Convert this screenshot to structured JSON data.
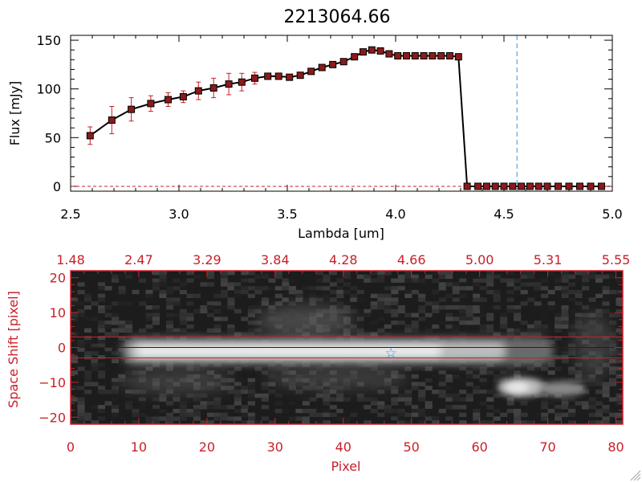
{
  "chart_data": [
    {
      "type": "line",
      "title": "2213064.66",
      "xlabel": "Lambda [um]",
      "ylabel": "Flux [mJy]",
      "xlim": [
        2.5,
        5.0
      ],
      "ylim": [
        -5,
        155
      ],
      "x_ticks": [
        "2.5",
        "3.0",
        "3.5",
        "4.0",
        "4.5",
        "5.0"
      ],
      "x_tick_values": [
        2.5,
        3.0,
        3.5,
        4.0,
        4.5,
        5.0
      ],
      "y_ticks": [
        "0",
        "50",
        "100",
        "150"
      ],
      "y_tick_values": [
        0,
        50,
        100,
        150
      ],
      "marker_line_x": 4.56,
      "marker_line_color": "#3b8fd6",
      "zero_line_color": "#c8202a",
      "series": [
        {
          "name": "flux",
          "line_color": "#000000",
          "marker_color": "#8b1a1a",
          "error_color": "#c8202a",
          "x": [
            2.59,
            2.69,
            2.78,
            2.87,
            2.95,
            3.02,
            3.09,
            3.16,
            3.23,
            3.29,
            3.35,
            3.41,
            3.46,
            3.51,
            3.56,
            3.61,
            3.66,
            3.71,
            3.76,
            3.81,
            3.85,
            3.89,
            3.93,
            3.97,
            4.01,
            4.05,
            4.09,
            4.13,
            4.17,
            4.21,
            4.25,
            4.29,
            4.33,
            4.38,
            4.42,
            4.46,
            4.5,
            4.54,
            4.58,
            4.62,
            4.66,
            4.7,
            4.75,
            4.8,
            4.85,
            4.9,
            4.95
          ],
          "y": [
            52,
            68,
            79,
            85,
            89,
            92,
            98,
            101,
            105,
            107,
            111,
            113,
            113,
            112,
            114,
            118,
            122,
            125,
            128,
            133,
            138,
            140,
            139,
            136,
            134,
            134,
            134,
            134,
            134,
            134,
            134,
            133,
            0,
            0,
            0,
            0,
            0,
            0,
            0,
            0,
            0,
            0,
            0,
            0,
            0,
            0,
            0
          ],
          "err": [
            9,
            14,
            12,
            8,
            7,
            6,
            9,
            10,
            11,
            9,
            6,
            3,
            2,
            2,
            2,
            2,
            2,
            2,
            2,
            2,
            2,
            2,
            2,
            2,
            1,
            1,
            1,
            1,
            1,
            1,
            1,
            1,
            0,
            0,
            0,
            0,
            0,
            0,
            0,
            0,
            0,
            0,
            0,
            0,
            0,
            0,
            0
          ]
        }
      ]
    },
    {
      "type": "heatmap",
      "xlabel": "Pixel",
      "ylabel": "Space Shift [pixel]",
      "xlim": [
        0,
        81
      ],
      "ylim": [
        -22,
        22
      ],
      "x_ticks": [
        "0",
        "10",
        "20",
        "30",
        "40",
        "50",
        "60",
        "70",
        "80"
      ],
      "x_tick_values": [
        0,
        10,
        20,
        30,
        40,
        50,
        60,
        70,
        80
      ],
      "y_ticks": [
        "20",
        "10",
        "0",
        "−10",
        "−20"
      ],
      "y_tick_values": [
        20,
        10,
        0,
        -10,
        -20
      ],
      "top_ticks": [
        "1.48",
        "2.47",
        "3.29",
        "3.84",
        "4.28",
        "4.66",
        "5.00",
        "5.31",
        "5.55"
      ],
      "top_tick_values": [
        0,
        10,
        20,
        30,
        40,
        50,
        60,
        70,
        80
      ],
      "aperture_lines_y": [
        3,
        -3
      ],
      "center_line_y": 0,
      "star_marker": {
        "x": 47,
        "y": -1.5,
        "symbol": "☆",
        "color": "#3b8fd6"
      },
      "accent_color": "#c8202a"
    }
  ]
}
